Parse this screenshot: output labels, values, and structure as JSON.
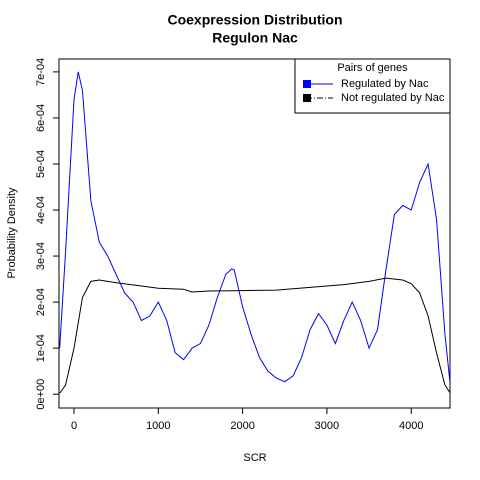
{
  "chart_data": {
    "type": "line",
    "title": "Coexpression Distribution",
    "subtitle": "Regulon Nac",
    "x_label": "SCR",
    "y_label": "Probability Density",
    "xlim": [
      -178,
      4460
    ],
    "ylim": [
      -3e-05,
      0.000728
    ],
    "xticks": [
      0,
      1000,
      2000,
      3000,
      4000
    ],
    "yticks": [
      {
        "value": 0,
        "label": "0e+00"
      },
      {
        "value": 0.0001,
        "label": "1e-04"
      },
      {
        "value": 0.0002,
        "label": "2e-04"
      },
      {
        "value": 0.0003,
        "label": "3e-04"
      },
      {
        "value": 0.0004,
        "label": "4e-04"
      },
      {
        "value": 0.0005,
        "label": "5e-04"
      },
      {
        "value": 0.0006,
        "label": "6e-04"
      },
      {
        "value": 0.0007,
        "label": "7e-04"
      }
    ],
    "legend_title": "Pairs of genes",
    "legend_position": "topright",
    "series": [
      {
        "name": "Regulated by Nac",
        "color": "#0000ff",
        "dash": "solid",
        "x": [
          -170,
          -100,
          0,
          50,
          100,
          200,
          300,
          400,
          500,
          600,
          700,
          800,
          900,
          1000,
          1100,
          1200,
          1300,
          1400,
          1500,
          1600,
          1700,
          1800,
          1870,
          1900,
          2000,
          2100,
          2200,
          2300,
          2400,
          2500,
          2600,
          2700,
          2800,
          2900,
          3000,
          3100,
          3200,
          3300,
          3400,
          3500,
          3600,
          3700,
          3800,
          3900,
          4000,
          4100,
          4200,
          4300,
          4400,
          4460
        ],
        "values": [
          0.0001,
          0.00031,
          0.00064,
          0.0007,
          0.00066,
          0.00042,
          0.00033,
          0.0003,
          0.00026,
          0.00022,
          0.0002,
          0.00016,
          0.00017,
          0.0002,
          0.00016,
          9e-05,
          7.5e-05,
          0.0001,
          0.00011,
          0.00015,
          0.00021,
          0.00026,
          0.000272,
          0.00027,
          0.00019,
          0.00013,
          8e-05,
          5e-05,
          3.5e-05,
          2.7e-05,
          4e-05,
          8e-05,
          0.00014,
          0.000175,
          0.00015,
          0.00011,
          0.00016,
          0.0002,
          0.00016,
          0.0001,
          0.00014,
          0.00027,
          0.00039,
          0.00041,
          0.0004,
          0.00046,
          0.0005,
          0.00038,
          0.00013,
          2.5e-05
        ]
      },
      {
        "name": "Not regulated by Nac",
        "color": "#000000",
        "dash": "dashdot",
        "x": [
          -170,
          -100,
          0,
          100,
          200,
          300,
          500,
          800,
          1000,
          1300,
          1400,
          1600,
          2000,
          2400,
          2800,
          3200,
          3500,
          3700,
          3900,
          4000,
          4100,
          4200,
          4300,
          4400,
          4460
        ],
        "values": [
          2e-06,
          2e-05,
          0.0001,
          0.00021,
          0.000245,
          0.000248,
          0.000242,
          0.000235,
          0.00023,
          0.000228,
          0.000222,
          0.000224,
          0.000225,
          0.000226,
          0.000232,
          0.000238,
          0.000245,
          0.000252,
          0.000248,
          0.00024,
          0.00022,
          0.00017,
          9e-05,
          2e-05,
          3e-06
        ]
      }
    ]
  }
}
